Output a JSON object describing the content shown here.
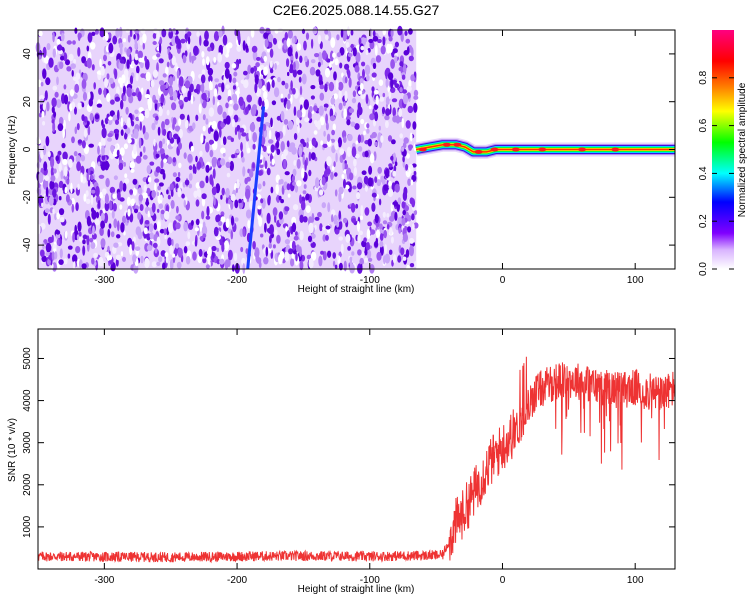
{
  "title": "C2E6.2025.088.14.55.G27",
  "chart_data": [
    {
      "type": "heatmap",
      "panel": "spectrogram",
      "xlabel": "Height of straight line (km)",
      "ylabel": "Frequency (Hz)",
      "xlim": [
        -350,
        130
      ],
      "ylim": [
        -50,
        50
      ],
      "xticks": [
        -300,
        -200,
        -100,
        0,
        100
      ],
      "yticks": [
        -40,
        -20,
        0,
        20,
        40
      ],
      "colorbar": {
        "label": "Normalized spectral amplitude",
        "range": [
          0,
          1
        ],
        "ticks": [
          0.0,
          0.2,
          0.4,
          0.6,
          0.8
        ],
        "colors": [
          "#ffffff",
          "#8000ff",
          "#0000ff",
          "#00ffff",
          "#00ff00",
          "#ffff00",
          "#ff8000",
          "#ff0000",
          "#ff0080"
        ]
      },
      "noise_region": {
        "x_start": -350,
        "x_end": -65,
        "amplitude": 0.15
      },
      "diagonal_streak": {
        "x_start": -192,
        "y_start": -50,
        "x_end": -180,
        "y_end": 18
      },
      "signal_track": [
        {
          "x": -65,
          "y": 0
        },
        {
          "x": -55,
          "y": 1
        },
        {
          "x": -45,
          "y": 2
        },
        {
          "x": -35,
          "y": 2
        },
        {
          "x": -28,
          "y": 1
        },
        {
          "x": -22,
          "y": -1
        },
        {
          "x": -12,
          "y": -1
        },
        {
          "x": -5,
          "y": 0
        },
        {
          "x": 20,
          "y": 0
        },
        {
          "x": 60,
          "y": 0
        },
        {
          "x": 100,
          "y": 0
        },
        {
          "x": 130,
          "y": 0
        }
      ]
    },
    {
      "type": "line",
      "panel": "snr",
      "xlabel": "Height of straight line (km)",
      "ylabel": "SNR (10 * v/v)",
      "xlim": [
        -350,
        130
      ],
      "ylim": [
        0,
        5700
      ],
      "xticks": [
        -300,
        -200,
        -100,
        0,
        100
      ],
      "yticks": [
        1000,
        2000,
        3000,
        4000,
        5000
      ],
      "color": "#ee3333",
      "series": [
        {
          "x": [
            -350,
            -300,
            -250,
            -200,
            -150,
            -100,
            -60,
            -45,
            -40,
            -35,
            -30,
            -25,
            -20,
            -15,
            -10,
            -5,
            0,
            5,
            10,
            15,
            20,
            25,
            30,
            40,
            50,
            60,
            70,
            80,
            90,
            100,
            110,
            120,
            130
          ],
          "values": [
            300,
            290,
            280,
            300,
            310,
            300,
            320,
            330,
            700,
            1100,
            1300,
            1600,
            1900,
            2200,
            2500,
            2700,
            2900,
            3100,
            3300,
            3500,
            3900,
            4200,
            4300,
            4450,
            4500,
            4450,
            4350,
            4300,
            4250,
            4300,
            4200,
            4150,
            4300
          ]
        }
      ],
      "grid": false
    }
  ]
}
